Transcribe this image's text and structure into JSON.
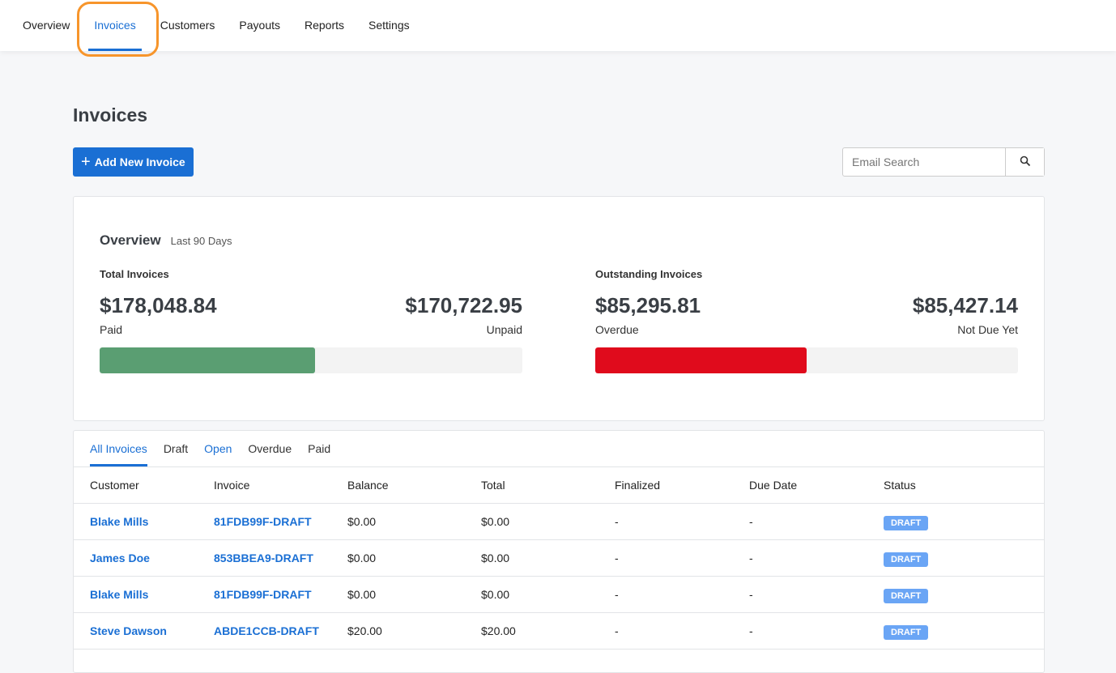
{
  "nav": {
    "items": [
      "Overview",
      "Invoices",
      "Customers",
      "Payouts",
      "Reports",
      "Settings"
    ],
    "active": 1
  },
  "page": {
    "title": "Invoices",
    "add_button": "Add New Invoice",
    "search_placeholder": "Email Search"
  },
  "overview": {
    "title": "Overview",
    "period": "Last 90 Days",
    "total": {
      "title": "Total Invoices",
      "paid": "$178,048.84",
      "paid_label": "Paid",
      "unpaid": "$170,722.95",
      "unpaid_label": "Unpaid",
      "fraction": 0.51,
      "color": "#5a9e72"
    },
    "outstanding": {
      "title": "Outstanding Invoices",
      "overdue": "$85,295.81",
      "overdue_label": "Overdue",
      "not_due": "$85,427.14",
      "not_due_label": "Not Due Yet",
      "fraction": 0.5,
      "color": "#e00b1c"
    }
  },
  "tabs": [
    "All Invoices",
    "Draft",
    "Open",
    "Overdue",
    "Paid"
  ],
  "table": {
    "headers": [
      "Customer",
      "Invoice",
      "Balance",
      "Total",
      "Finalized",
      "Due Date",
      "Status"
    ],
    "rows": [
      [
        "Blake Mills",
        "81FDB99F-DRAFT",
        "$0.00",
        "$0.00",
        "-",
        "-",
        "DRAFT"
      ],
      [
        "James Doe",
        "853BBEA9-DRAFT",
        "$0.00",
        "$0.00",
        "-",
        "-",
        "DRAFT"
      ],
      [
        "Blake Mills",
        "81FDB99F-DRAFT",
        "$0.00",
        "$0.00",
        "-",
        "-",
        "DRAFT"
      ],
      [
        "Steve Dawson",
        "ABDE1CCB-DRAFT",
        "$20.00",
        "$20.00",
        "-",
        "-",
        "DRAFT"
      ]
    ]
  }
}
